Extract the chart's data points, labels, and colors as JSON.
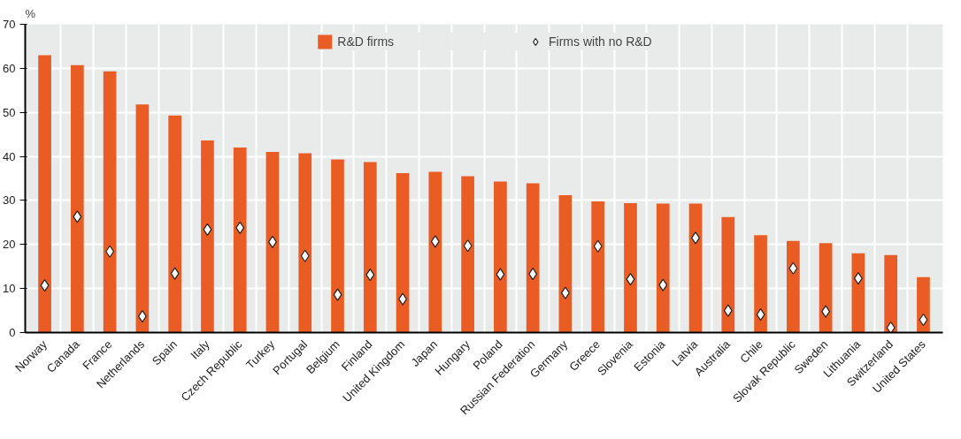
{
  "chart_data": {
    "type": "bar",
    "ylabel": "%",
    "categories": [
      "Norway",
      "Canada",
      "France",
      "Netherlands",
      "Spain",
      "Italy",
      "Czech Republic",
      "Turkey",
      "Portugal",
      "Belgium",
      "Finland",
      "United Kingdom",
      "Japan",
      "Hungary",
      "Poland",
      "Russian Federation",
      "Germany",
      "Greece",
      "Slovenia",
      "Estonia",
      "Latvia",
      "Australia",
      "Chile",
      "Slovak Republic",
      "Sweden",
      "Lithuania",
      "Switzerland",
      "United States"
    ],
    "series": [
      {
        "name": "R&D firms",
        "color": "#e95d24",
        "values": [
          63,
          60.7,
          59.3,
          51.8,
          49.3,
          43.6,
          42,
          41,
          40.7,
          39.3,
          38.7,
          36.2,
          36.5,
          35.5,
          34.3,
          33.9,
          31.2,
          29.8,
          29.4,
          29.3,
          29.3,
          26.2,
          22.1,
          20.8,
          20.3,
          18,
          17.6,
          12.6
        ]
      },
      {
        "name": "Firms with no R&D",
        "type": "scatter",
        "marker": "diamond",
        "color": "#ffffff",
        "values": [
          10.7,
          26.3,
          18.4,
          3.7,
          13.4,
          23.4,
          23.8,
          20.6,
          17.4,
          8.6,
          13.1,
          7.6,
          20.7,
          19.7,
          13.2,
          13.3,
          9,
          19.6,
          12.1,
          10.8,
          21.5,
          5,
          4.1,
          14.6,
          4.8,
          12.3,
          1.1,
          2.9
        ]
      }
    ],
    "ylim": [
      0,
      70
    ],
    "yticks": [
      0,
      10,
      20,
      30,
      40,
      50,
      60,
      70
    ],
    "grid": true,
    "legend": "top"
  }
}
